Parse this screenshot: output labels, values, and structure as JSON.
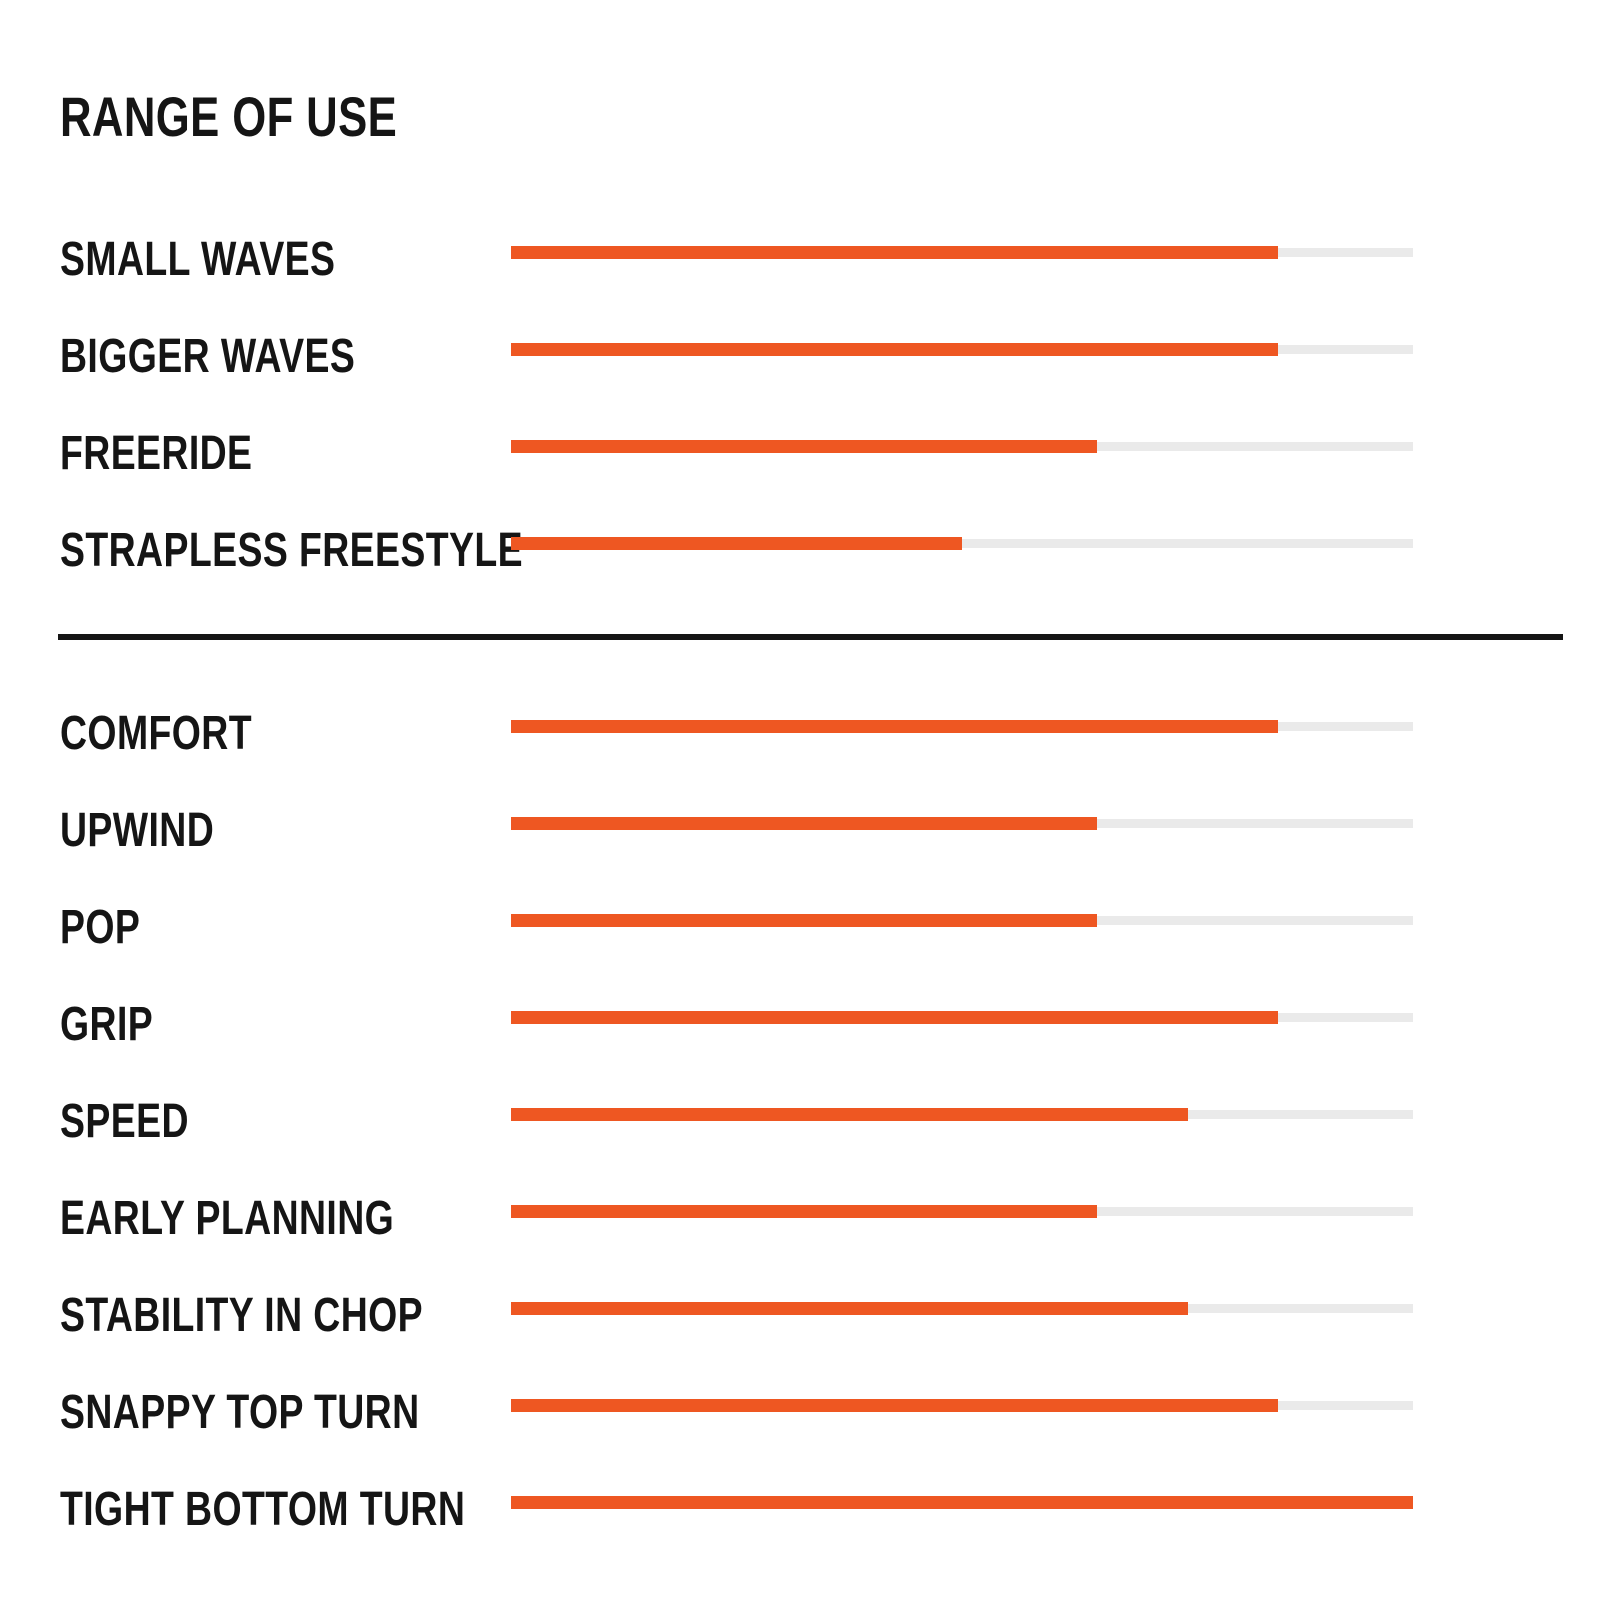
{
  "title": "RANGE OF USE",
  "colors": {
    "bar_fill": "#ee5722",
    "bar_track": "#eaeaea",
    "text": "#151515",
    "divider": "#151515",
    "background": "#ffffff"
  },
  "chart_data": {
    "type": "bar",
    "orientation": "horizontal",
    "title": "RANGE OF USE",
    "value_axis": {
      "min": 0,
      "max": 100,
      "unit": "%",
      "ticks_visible": false
    },
    "grid": false,
    "legend": false,
    "sections": [
      {
        "name": "range-of-use",
        "rows": [
          {
            "label": "SMALL WAVES",
            "value": 85
          },
          {
            "label": "BIGGER WAVES",
            "value": 85
          },
          {
            "label": "FREERIDE",
            "value": 65
          },
          {
            "label": "STRAPLESS FREESTYLE",
            "value": 50
          }
        ]
      },
      {
        "name": "characteristics",
        "rows": [
          {
            "label": "COMFORT",
            "value": 85
          },
          {
            "label": "UPWIND",
            "value": 65
          },
          {
            "label": "POP",
            "value": 65
          },
          {
            "label": "GRIP",
            "value": 85
          },
          {
            "label": "SPEED",
            "value": 75
          },
          {
            "label": "EARLY PLANNING",
            "value": 65
          },
          {
            "label": "STABILITY IN CHOP",
            "value": 75
          },
          {
            "label": "SNAPPY TOP TURN",
            "value": 85
          },
          {
            "label": "TIGHT BOTTOM TURN",
            "value": 100
          }
        ]
      }
    ]
  }
}
